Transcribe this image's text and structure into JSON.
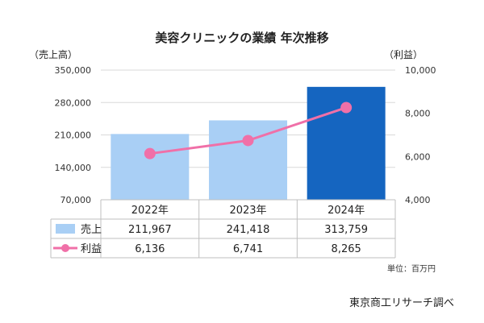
{
  "chart_data": {
    "type": "bar",
    "title": "美容クリニックの業績 年次推移",
    "categories": [
      "2022年",
      "2023年",
      "2024年"
    ],
    "series": [
      {
        "name": "売上",
        "type": "bar",
        "axis": "left",
        "values": [
          211967,
          241418,
          313759
        ],
        "colors": [
          "#a9cff5",
          "#a9cff5",
          "#1565c0"
        ]
      },
      {
        "name": "利益",
        "type": "line",
        "axis": "right",
        "values": [
          6136,
          6741,
          8265
        ],
        "color": "#f070a8"
      }
    ],
    "y_left": {
      "label": "（売上高）",
      "ylim": [
        70000,
        350000
      ],
      "ticks": [
        "350,000",
        "280,000",
        "210,000",
        "140,000",
        "70,000"
      ],
      "tick_values": [
        350000,
        280000,
        210000,
        140000,
        70000
      ]
    },
    "y_right": {
      "label": "（利益）",
      "ylim": [
        4000,
        10000
      ],
      "ticks": [
        "10,000",
        "8,000",
        "6,000",
        "4,000"
      ],
      "tick_values": [
        10000,
        8000,
        6000,
        4000
      ]
    },
    "table": {
      "rows": [
        {
          "label": "売上",
          "values": [
            "211,967",
            "241,418",
            "313,759"
          ]
        },
        {
          "label": "利益",
          "values": [
            "6,136",
            "6,741",
            "8,265"
          ]
        }
      ]
    },
    "unit_note": "単位：百万円",
    "grid": true
  },
  "source": "東京商工リサーチ調べ"
}
